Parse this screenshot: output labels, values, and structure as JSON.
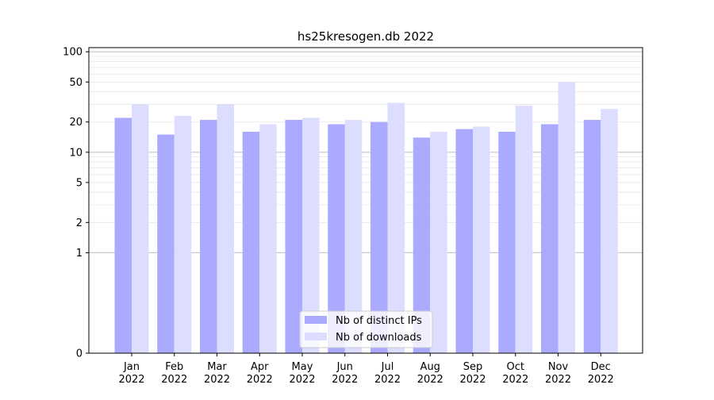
{
  "chart_data": {
    "type": "bar",
    "title": "hs25kresogen.db 2022",
    "xlabel": "",
    "ylabel": "",
    "y_scale": "symlog",
    "ylim": [
      0,
      110
    ],
    "yticks": [
      0,
      1,
      2,
      5,
      10,
      20,
      50,
      100
    ],
    "ytick_labels": [
      "0",
      "1",
      "2",
      "5",
      "10",
      "20",
      "50",
      "100"
    ],
    "categories": [
      "Jan\n2022",
      "Feb\n2022",
      "Mar\n2022",
      "Apr\n2022",
      "May\n2022",
      "Jun\n2022",
      "Jul\n2022",
      "Aug\n2022",
      "Sep\n2022",
      "Oct\n2022",
      "Nov\n2022",
      "Dec\n2022"
    ],
    "series": [
      {
        "name": "Nb of distinct IPs",
        "color": "#aaaaff",
        "values": [
          22,
          15,
          21,
          16,
          21,
          19,
          20,
          14,
          17,
          16,
          19,
          21
        ]
      },
      {
        "name": "Nb of downloads",
        "color": "#ddddff",
        "values": [
          30,
          23,
          30,
          19,
          22,
          21,
          31,
          16,
          18,
          29,
          50,
          27
        ]
      }
    ],
    "grid": true,
    "legend_position": "lower center"
  }
}
